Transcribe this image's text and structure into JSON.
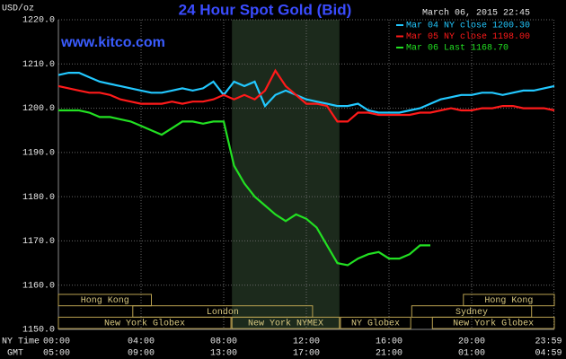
{
  "chart_data": {
    "type": "line",
    "title": "24 Hour Spot Gold (Bid)",
    "unit_label": "USD/oz",
    "timestamp": "March 06, 2015 22:45",
    "website": "www.kitco.com",
    "x_axis_label": "NY Time",
    "x2_axis_label": "GMT",
    "x": [
      0,
      0.5,
      1,
      1.5,
      2,
      2.5,
      3,
      3.5,
      4,
      4.5,
      5,
      5.5,
      6,
      6.5,
      7,
      7.5,
      8,
      8.5,
      9,
      9.5,
      10,
      10.5,
      11,
      11.5,
      12,
      12.5,
      13,
      13.5,
      14,
      14.5,
      15,
      15.5,
      16,
      16.5,
      17,
      17.5,
      18,
      18.5,
      19,
      19.5,
      20,
      20.5,
      21,
      21.5,
      22,
      22.5,
      23,
      23.5,
      24
    ],
    "series": [
      {
        "name": "Mar 04 NY close 1200.30",
        "color": "#22c8ff",
        "values": [
          1207.5,
          1208,
          1208,
          1207,
          1206,
          1205.5,
          1205,
          1204.5,
          1204,
          1203.5,
          1203.5,
          1204,
          1204.5,
          1204,
          1204.5,
          1206,
          1203,
          1206,
          1205,
          1206,
          1200.5,
          1203,
          1204,
          1203,
          1202,
          1201.5,
          1201,
          1200.5,
          1200.5,
          1201,
          1199.5,
          1199,
          1199,
          1199,
          1199.5,
          1200,
          1201,
          1202,
          1202.5,
          1203,
          1203,
          1203.5,
          1203.5,
          1203,
          1203.5,
          1204,
          1204,
          1204.5,
          1205
        ]
      },
      {
        "name": "Mar 05 NY close 1198.00",
        "color": "#ff1a1a",
        "values": [
          1205,
          1204.5,
          1204,
          1203.5,
          1203.5,
          1203,
          1202,
          1201.5,
          1201,
          1201,
          1201,
          1201.5,
          1201,
          1201.5,
          1201.5,
          1202,
          1203,
          1202,
          1203,
          1202,
          1204,
          1208.5,
          1205,
          1203,
          1201,
          1201,
          1200.5,
          1197,
          1197,
          1199,
          1199,
          1198.5,
          1198.5,
          1198.5,
          1198.5,
          1199,
          1199,
          1199.5,
          1200,
          1199.5,
          1199.5,
          1200,
          1200,
          1200.5,
          1200.5,
          1200,
          1200,
          1200,
          1199.5
        ]
      },
      {
        "name": "Mar 06 Last 1168.70",
        "color": "#22e022",
        "values": [
          1199.5,
          1199.5,
          1199.5,
          1199,
          1198,
          1198,
          1197.5,
          1197,
          1196,
          1195,
          1194,
          1195.5,
          1197,
          1197,
          1196.5,
          1197,
          1197,
          1187,
          1183,
          1180,
          1178,
          1176,
          1174.5,
          1176,
          1175,
          1173,
          1169,
          1165,
          1164.5,
          1166,
          1167,
          1167.5,
          1166,
          1166,
          1167,
          1169,
          1169,
          null,
          null,
          null,
          null,
          null,
          null,
          null,
          null,
          null,
          null,
          null,
          null
        ]
      }
    ],
    "xlim": [
      0,
      24
    ],
    "ylim": [
      1150,
      1220
    ],
    "yticks": [
      {
        "value": 1150,
        "label": "1150.0"
      },
      {
        "value": 1160,
        "label": "1160.0"
      },
      {
        "value": 1170,
        "label": "1170.0"
      },
      {
        "value": 1180,
        "label": "1180.0"
      },
      {
        "value": 1190,
        "label": "1190.0"
      },
      {
        "value": 1200,
        "label": "1200.0"
      },
      {
        "value": 1210,
        "label": "1210.0"
      },
      {
        "value": 1220,
        "label": "1220.0"
      }
    ],
    "xticks": [
      {
        "value": 0,
        "label": "00:00"
      },
      {
        "value": 4,
        "label": "04:00"
      },
      {
        "value": 8,
        "label": "08:00"
      },
      {
        "value": 12,
        "label": "12:00"
      },
      {
        "value": 16,
        "label": "16:00"
      },
      {
        "value": 20,
        "label": "20:00"
      },
      {
        "value": 23.98,
        "label": "23:59"
      }
    ],
    "x2ticks": [
      {
        "value": 0,
        "label": "05:00"
      },
      {
        "value": 4,
        "label": "09:00"
      },
      {
        "value": 8,
        "label": "13:00"
      },
      {
        "value": 12,
        "label": "17:00"
      },
      {
        "value": 16,
        "label": "21:00"
      },
      {
        "value": 20,
        "label": "01:00"
      },
      {
        "value": 23.98,
        "label": "04:59"
      }
    ],
    "grid": true,
    "sessions": [
      [
        {
          "label": "Hong Kong",
          "start": 0,
          "end": 4.5
        },
        {
          "label": "Hong Kong",
          "start": 19.6,
          "end": 24
        }
      ],
      [
        {
          "label": "London",
          "start": 3.6,
          "end": 12.3
        },
        {
          "label": "Sydney",
          "start": 17.1,
          "end": 22.9
        }
      ],
      [
        {
          "label": "New York Globex",
          "start": 0,
          "end": 8.35
        },
        {
          "label": "New York NYMEX",
          "start": 8.4,
          "end": 13.6
        },
        {
          "label": "NY Globex",
          "start": 13.65,
          "end": 17.05
        },
        {
          "label": "New York Globex",
          "start": 18.1,
          "end": 24
        }
      ]
    ]
  }
}
